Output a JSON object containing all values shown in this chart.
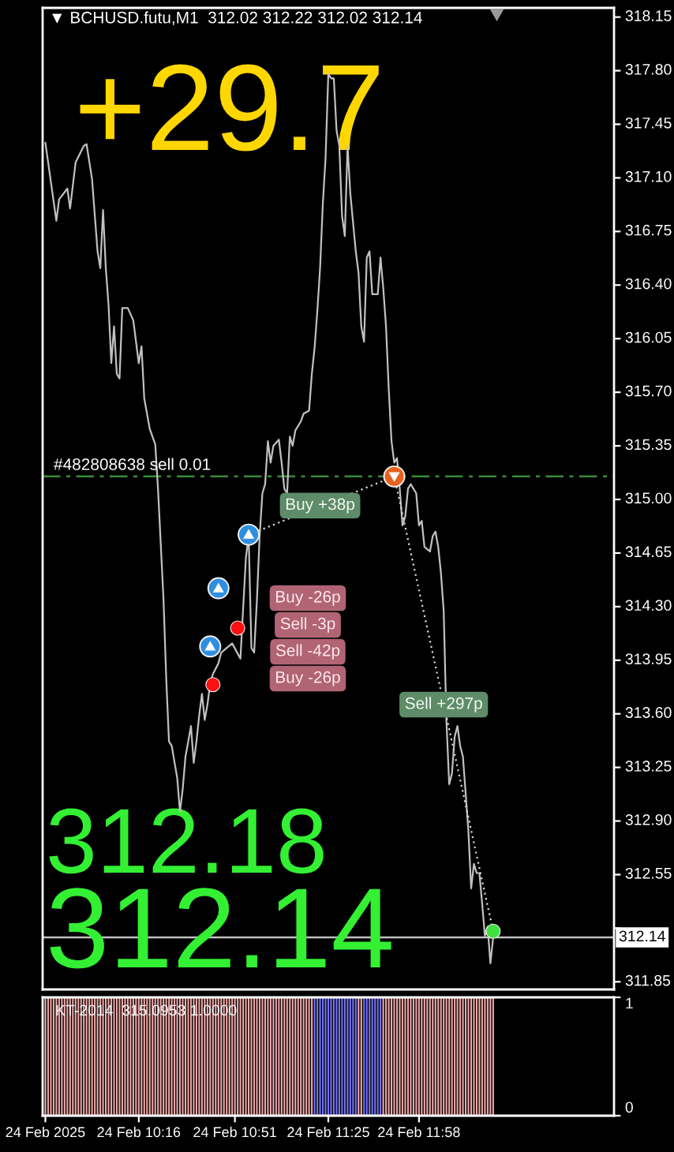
{
  "chart_data": [
    {
      "type": "line",
      "title": "▼ BCHUSD.futu,M1  312.02 312.22 312.02 312.14",
      "annotations": [
        "+29.7",
        "312.18",
        "312.14",
        "Buy -26p",
        "Sell -3p",
        "Sell -42p",
        "Buy -26p",
        {
          "text": "Buy +38p",
          "x": "2025-02-24T11:22",
          "y": 314.96
        },
        {
          "text": "Sell +297p",
          "x": "2025-02-24T12:07",
          "y": 313.66
        }
      ],
      "series": [
        {
          "type": "line",
          "color": "#c0c0c0",
          "x": [
            "2025-02-24T09:42",
            "2025-02-24T09:46",
            "2025-02-24T09:47",
            "2025-02-24T09:50",
            "2025-02-24T09:51",
            "2025-02-24T09:53",
            "2025-02-24T09:56",
            "2025-02-24T09:57",
            "2025-02-24T09:59",
            "2025-02-24T10:01",
            "2025-02-24T10:02",
            "2025-02-24T10:03",
            "2025-02-24T10:04",
            "2025-02-24T10:05",
            "2025-02-24T10:06",
            "2025-02-24T10:07",
            "2025-02-24T10:08",
            "2025-02-24T10:09",
            "2025-02-24T10:10",
            "2025-02-24T10:12",
            "2025-02-24T10:14",
            "2025-02-24T10:16",
            "2025-02-24T10:17",
            "2025-02-24T10:18",
            "2025-02-24T10:20",
            "2025-02-24T10:22",
            "2025-02-24T10:23",
            "2025-02-24T10:25",
            "2025-02-24T10:26",
            "2025-02-24T10:27",
            "2025-02-24T10:28",
            "2025-02-24T10:30",
            "2025-02-24T10:31",
            "2025-02-24T10:32",
            "2025-02-24T10:33",
            "2025-02-24T10:34",
            "2025-02-24T10:35",
            "2025-02-24T10:36",
            "2025-02-24T10:37",
            "2025-02-24T10:38",
            "2025-02-24T10:39",
            "2025-02-24T10:40",
            "2025-02-24T10:41",
            "2025-02-24T10:42",
            "2025-02-24T10:43",
            "2025-02-24T10:45",
            "2025-02-24T10:46",
            "2025-02-24T10:50",
            "2025-02-24T10:53",
            "2025-02-24T10:55",
            "2025-02-24T10:56",
            "2025-02-24T10:57",
            "2025-02-24T10:58",
            "2025-02-24T10:59",
            "2025-02-24T11:00",
            "2025-02-24T11:01",
            "2025-02-24T11:02",
            "2025-02-24T11:03",
            "2025-02-24T11:04",
            "2025-02-24T11:05",
            "2025-02-24T11:07",
            "2025-02-24T11:08",
            "2025-02-24T11:09",
            "2025-02-24T11:10",
            "2025-02-24T11:11",
            "2025-02-24T11:12",
            "2025-02-24T11:13",
            "2025-02-24T11:15",
            "2025-02-24T11:16",
            "2025-02-24T11:18",
            "2025-02-24T11:19",
            "2025-02-24T11:20",
            "2025-02-24T11:21",
            "2025-02-24T11:22",
            "2025-02-24T11:23",
            "2025-02-24T11:24",
            "2025-02-24T11:25",
            "2025-02-24T11:26",
            "2025-02-24T11:27",
            "2025-02-24T11:28",
            "2025-02-24T11:29",
            "2025-02-24T11:30",
            "2025-02-24T11:31",
            "2025-02-24T11:32",
            "2025-02-24T11:33",
            "2025-02-24T11:35",
            "2025-02-24T11:36",
            "2025-02-24T11:37",
            "2025-02-24T11:38",
            "2025-02-24T11:39",
            "2025-02-24T11:40",
            "2025-02-24T11:41",
            "2025-02-24T11:43",
            "2025-02-24T11:44",
            "2025-02-24T11:45",
            "2025-02-24T11:46",
            "2025-02-24T11:47",
            "2025-02-24T11:48",
            "2025-02-24T11:49",
            "2025-02-24T11:50",
            "2025-02-24T11:51",
            "2025-02-24T11:52",
            "2025-02-24T11:53",
            "2025-02-24T11:54",
            "2025-02-24T11:55",
            "2025-02-24T11:57",
            "2025-02-24T11:58",
            "2025-02-24T11:59",
            "2025-02-24T12:00",
            "2025-02-24T12:02",
            "2025-02-24T12:03",
            "2025-02-24T12:04",
            "2025-02-24T12:05",
            "2025-02-24T12:06",
            "2025-02-24T12:07",
            "2025-02-24T12:08",
            "2025-02-24T12:09",
            "2025-02-24T12:10",
            "2025-02-24T12:11",
            "2025-02-24T12:12",
            "2025-02-24T12:13",
            "2025-02-24T12:14",
            "2025-02-24T12:15",
            "2025-02-24T12:16",
            "2025-02-24T12:17",
            "2025-02-24T12:18",
            "2025-02-24T12:19",
            "2025-02-24T12:20",
            "2025-02-24T12:21",
            "2025-02-24T12:22",
            "2025-02-24T12:23",
            "2025-02-24T12:24",
            "2025-02-24T12:25"
          ],
          "values": [
            317.33,
            316.82,
            316.96,
            317.03,
            316.9,
            317.2,
            317.31,
            317.32,
            317.09,
            316.62,
            316.51,
            316.89,
            316.51,
            316.27,
            315.89,
            316.13,
            315.82,
            315.79,
            316.25,
            316.25,
            316.17,
            315.89,
            316.0,
            315.66,
            315.46,
            315.36,
            315.07,
            314.35,
            313.83,
            313.42,
            313.39,
            313.18,
            312.96,
            313.11,
            313.32,
            313.42,
            313.52,
            313.28,
            313.42,
            313.59,
            313.73,
            313.56,
            313.66,
            313.8,
            313.86,
            313.93,
            314.0,
            314.06,
            313.96,
            314.62,
            314.76,
            314.03,
            314.0,
            314.34,
            314.76,
            315.04,
            315.1,
            315.38,
            315.24,
            315.35,
            315.39,
            315.24,
            315.07,
            315.04,
            315.41,
            315.35,
            315.45,
            315.51,
            315.56,
            315.58,
            315.82,
            315.99,
            316.23,
            316.51,
            316.93,
            317.23,
            317.78,
            317.75,
            317.75,
            317.41,
            317.31,
            316.85,
            316.72,
            317.31,
            317.0,
            316.62,
            316.48,
            316.13,
            316.03,
            316.58,
            316.62,
            316.34,
            316.34,
            316.58,
            316.38,
            316.13,
            315.72,
            315.38,
            315.24,
            315.27,
            315.07,
            314.83,
            314.89,
            315.07,
            315.1,
            315.04,
            314.83,
            314.86,
            314.69,
            314.66,
            314.76,
            314.79,
            314.69,
            314.52,
            314.27,
            313.55,
            313.14,
            313.21,
            313.45,
            313.52,
            313.39,
            313.32,
            313.08,
            312.83,
            312.46,
            312.62,
            312.56,
            312.56,
            312.36,
            312.15,
            312.21,
            311.97,
            312.14
          ]
        },
        {
          "type": "line",
          "color": "#d8d8d8",
          "line_style": "dotted",
          "x": [
            "2025-02-24T10:56",
            "2025-02-24T11:49"
          ],
          "values": [
            314.77,
            315.15
          ]
        },
        {
          "type": "line",
          "color": "#d8d8d8",
          "line_style": "dotted",
          "x": [
            "2025-02-24T11:49",
            "2025-02-24T12:25"
          ],
          "values": [
            315.15,
            312.18
          ]
        },
        {
          "type": "scatter",
          "marker": "circle",
          "color": "#2f8fdf",
          "x": [
            "2025-02-24T10:42",
            "2025-02-24T10:45",
            "2025-02-24T10:56"
          ],
          "values": [
            314.04,
            314.42,
            314.77
          ]
        },
        {
          "type": "scatter",
          "marker": "circle",
          "color": "#e8621e",
          "x": [
            "2025-02-24T11:49"
          ],
          "values": [
            315.15
          ]
        },
        {
          "type": "scatter",
          "marker": "circle",
          "colors": [
            "#ff1010",
            "#ff1010",
            "#40e040"
          ],
          "x": [
            "2025-02-24T10:43",
            "2025-02-24T10:52",
            "2025-02-24T12:25"
          ],
          "values": [
            313.79,
            314.16,
            312.18
          ]
        }
      ],
      "ref_lines": [
        {
          "axis": "y",
          "value": 315.15,
          "label": "#482808638 sell 0.01",
          "color": "#3a8a3a",
          "line_style": "dashdot"
        },
        {
          "axis": "y",
          "value": 312.14,
          "label": "312.14",
          "color": "#c0c0c0",
          "line_style": "solid"
        }
      ],
      "xlim": [
        "2025-02-24T09:41",
        "2025-02-24T13:09"
      ],
      "ylim": [
        311.8,
        318.21
      ],
      "yticks": [
        318.15,
        {
          "value": 317.8,
          "label": "317.80"
        },
        317.45,
        {
          "value": 317.1,
          "label": "317.10"
        },
        316.75,
        {
          "value": 316.4,
          "label": "316.40"
        },
        316.05,
        {
          "value": 315.7,
          "label": "315.70"
        },
        315.35,
        {
          "value": 315.0,
          "label": "315.00"
        },
        314.65,
        {
          "value": 314.3,
          "label": "314.30"
        },
        313.95,
        {
          "value": 313.6,
          "label": "313.60"
        },
        313.25,
        {
          "value": 312.9,
          "label": "312.90"
        },
        312.55,
        {
          "value": 312.2,
          "label": null
        },
        311.85
      ],
      "tick_labels": "y"
    },
    {
      "type": "bar",
      "annotations": [
        "KT-2014  315.0953 1.0000"
      ],
      "series": [
        {
          "color": "#efa8a8",
          "x": [
            "2025-02-24T09:42",
            "2025-02-24T09:43",
            "2025-02-24T09:44",
            "2025-02-24T09:45",
            "2025-02-24T09:46",
            "2025-02-24T09:47",
            "2025-02-24T09:48",
            "2025-02-24T09:49",
            "2025-02-24T09:50",
            "2025-02-24T09:51",
            "2025-02-24T09:52",
            "2025-02-24T09:53",
            "2025-02-24T09:54",
            "2025-02-24T09:55",
            "2025-02-24T09:56",
            "2025-02-24T09:57",
            "2025-02-24T09:58",
            "2025-02-24T09:59",
            "2025-02-24T10:00",
            "2025-02-24T10:01",
            "2025-02-24T10:02",
            "2025-02-24T10:03",
            "2025-02-24T10:04",
            "2025-02-24T10:05",
            "2025-02-24T10:06",
            "2025-02-24T10:07",
            "2025-02-24T10:08",
            "2025-02-24T10:09",
            "2025-02-24T10:10",
            "2025-02-24T10:11",
            "2025-02-24T10:12",
            "2025-02-24T10:13",
            "2025-02-24T10:14",
            "2025-02-24T10:15",
            "2025-02-24T10:16",
            "2025-02-24T10:17",
            "2025-02-24T10:18",
            "2025-02-24T10:19",
            "2025-02-24T10:20",
            "2025-02-24T10:21",
            "2025-02-24T10:22",
            "2025-02-24T10:23",
            "2025-02-24T10:24",
            "2025-02-24T10:25",
            "2025-02-24T10:26",
            "2025-02-24T10:27",
            "2025-02-24T10:28",
            "2025-02-24T10:29",
            "2025-02-24T10:30",
            "2025-02-24T10:31",
            "2025-02-24T10:32",
            "2025-02-24T10:33",
            "2025-02-24T10:34",
            "2025-02-24T10:35",
            "2025-02-24T10:36",
            "2025-02-24T10:37",
            "2025-02-24T10:38",
            "2025-02-24T10:39",
            "2025-02-24T10:40",
            "2025-02-24T10:41",
            "2025-02-24T10:42",
            "2025-02-24T10:43",
            "2025-02-24T10:44",
            "2025-02-24T10:45",
            "2025-02-24T10:46",
            "2025-02-24T10:47",
            "2025-02-24T10:48",
            "2025-02-24T10:49",
            "2025-02-24T10:50",
            "2025-02-24T10:51",
            "2025-02-24T10:52",
            "2025-02-24T10:53",
            "2025-02-24T10:54",
            "2025-02-24T10:55",
            "2025-02-24T10:56",
            "2025-02-24T10:57",
            "2025-02-24T10:58",
            "2025-02-24T10:59",
            "2025-02-24T11:00",
            "2025-02-24T11:01",
            "2025-02-24T11:02",
            "2025-02-24T11:03",
            "2025-02-24T11:04",
            "2025-02-24T11:05",
            "2025-02-24T11:06",
            "2025-02-24T11:07",
            "2025-02-24T11:08",
            "2025-02-24T11:09",
            "2025-02-24T11:10",
            "2025-02-24T11:11",
            "2025-02-24T11:12",
            "2025-02-24T11:13",
            "2025-02-24T11:14",
            "2025-02-24T11:15",
            "2025-02-24T11:16",
            "2025-02-24T11:17",
            "2025-02-24T11:18",
            "2025-02-24T11:19",
            "2025-02-24T11:36",
            "2025-02-24T11:37",
            "2025-02-24T11:45",
            "2025-02-24T11:46",
            "2025-02-24T11:47",
            "2025-02-24T11:48",
            "2025-02-24T11:49",
            "2025-02-24T11:50",
            "2025-02-24T11:51",
            "2025-02-24T11:52",
            "2025-02-24T11:53",
            "2025-02-24T11:54",
            "2025-02-24T11:55",
            "2025-02-24T11:56",
            "2025-02-24T11:57",
            "2025-02-24T11:58",
            "2025-02-24T11:59",
            "2025-02-24T12:00",
            "2025-02-24T12:01",
            "2025-02-24T12:02",
            "2025-02-24T12:03",
            "2025-02-24T12:04",
            "2025-02-24T12:05",
            "2025-02-24T12:06",
            "2025-02-24T12:07",
            "2025-02-24T12:08",
            "2025-02-24T12:09",
            "2025-02-24T12:10",
            "2025-02-24T12:11",
            "2025-02-24T12:12",
            "2025-02-24T12:13",
            "2025-02-24T12:14",
            "2025-02-24T12:15",
            "2025-02-24T12:16",
            "2025-02-24T12:17",
            "2025-02-24T12:18",
            "2025-02-24T12:19",
            "2025-02-24T12:20",
            "2025-02-24T12:21",
            "2025-02-24T12:22",
            "2025-02-24T12:23",
            "2025-02-24T12:24",
            "2025-02-24T12:25"
          ],
          "values": [
            1,
            1,
            1,
            1,
            1,
            1,
            1,
            1,
            1,
            1,
            1,
            1,
            1,
            1,
            1,
            1,
            1,
            1,
            1,
            1,
            1,
            1,
            1,
            1,
            1,
            1,
            1,
            1,
            1,
            1,
            1,
            1,
            1,
            1,
            1,
            1,
            1,
            1,
            1,
            1,
            1,
            1,
            1,
            1,
            1,
            1,
            1,
            1,
            1,
            1,
            1,
            1,
            1,
            1,
            1,
            1,
            1,
            1,
            1,
            1,
            1,
            1,
            1,
            1,
            1,
            1,
            1,
            1,
            1,
            1,
            1,
            1,
            1,
            1,
            1,
            1,
            1,
            1,
            1,
            1,
            1,
            1,
            1,
            1,
            1,
            1,
            1,
            1,
            1,
            1,
            1,
            1,
            1,
            1,
            1,
            1,
            1,
            1,
            1,
            1,
            1,
            1,
            1,
            1,
            1,
            1,
            1,
            1,
            1,
            1,
            1,
            1,
            1,
            1,
            1,
            1,
            1,
            1,
            1,
            1,
            1,
            1,
            1,
            1,
            1,
            1,
            1,
            1,
            1,
            1,
            1,
            1,
            1,
            1,
            1,
            1,
            1,
            1,
            1,
            1,
            1
          ]
        },
        {
          "color": "#7474f4",
          "x": [
            "2025-02-24T11:20",
            "2025-02-24T11:21",
            "2025-02-24T11:22",
            "2025-02-24T11:23",
            "2025-02-24T11:24",
            "2025-02-24T11:25",
            "2025-02-24T11:26",
            "2025-02-24T11:27",
            "2025-02-24T11:28",
            "2025-02-24T11:29",
            "2025-02-24T11:30",
            "2025-02-24T11:31",
            "2025-02-24T11:32",
            "2025-02-24T11:33",
            "2025-02-24T11:34",
            "2025-02-24T11:35",
            "2025-02-24T11:38",
            "2025-02-24T11:39",
            "2025-02-24T11:40",
            "2025-02-24T11:41",
            "2025-02-24T11:42",
            "2025-02-24T11:43",
            "2025-02-24T11:44"
          ],
          "values": [
            1,
            1,
            1,
            1,
            1,
            1,
            1,
            1,
            1,
            1,
            1,
            1,
            1,
            1,
            1,
            1,
            1,
            1,
            1,
            1,
            1,
            1,
            1
          ]
        }
      ],
      "xlim": [
        "2025-02-24T09:41",
        "2025-02-24T13:09"
      ],
      "xticks": [
        {
          "value": "2025-02-24T09:42",
          "label": "24 Feb 2025"
        },
        {
          "value": "2025-02-24T10:16",
          "label": "24 Feb 10:16"
        },
        {
          "value": "2025-02-24T10:51",
          "label": "24 Feb 10:51"
        },
        {
          "value": "2025-02-24T11:25",
          "label": "24 Feb 11:25"
        },
        {
          "value": "2025-02-24T11:58",
          "label": "24 Feb 11:58"
        }
      ],
      "ylim": [
        0,
        1
      ],
      "yticks": [
        0,
        1
      ]
    }
  ]
}
